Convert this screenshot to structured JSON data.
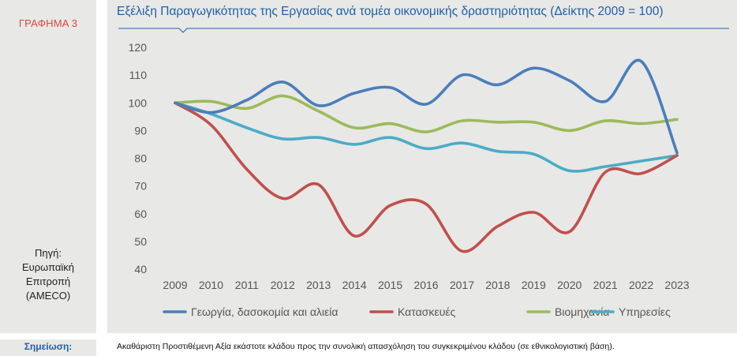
{
  "left": {
    "figure_label": "ΓΡΑΦΗΜΑ 3",
    "source_lines": [
      "Πηγή:",
      "Ευρωπαϊκή",
      "Επιτροπή",
      "(AMECO)"
    ]
  },
  "note": {
    "label": "Σημείωση:",
    "text": "Ακαθάριστη Προστιθέμενη Αξία εκάστοτε κλάδου προς την συνολική απασχόληση του συγκεκριμένου κλάδου (σε εθνικολογιστική βάση)."
  },
  "colors": {
    "title": "#1f5fa8",
    "figure_label": "#e0443c",
    "series": [
      "#4a7ebb",
      "#c0504d",
      "#9bbb59",
      "#4bacc6"
    ]
  },
  "chart_data": {
    "type": "line",
    "title": "Εξέλιξη Παραγωγικότητας της Εργασίας ανά τομέα οικονομικής δραστηριότητας (Δείκτης 2009 = 100)",
    "xlabel": "",
    "ylabel": "",
    "x": [
      "2009",
      "2010",
      "2011",
      "2012",
      "2013",
      "2014",
      "2015",
      "2016",
      "2017",
      "2018",
      "2019",
      "2020",
      "2021",
      "2022",
      "2023"
    ],
    "ylim": [
      40,
      120
    ],
    "yticks": [
      "40",
      "50",
      "60",
      "70",
      "80",
      "90",
      "100",
      "110",
      "120"
    ],
    "grid": false,
    "legend_position": "bottom",
    "series": [
      {
        "name": "Γεωργία, δασοκομία και αλιεία",
        "values": [
          100,
          96.5,
          101,
          107.5,
          99,
          103.5,
          105.5,
          99.5,
          110,
          106.5,
          112.5,
          108,
          100.5,
          115,
          82
        ]
      },
      {
        "name": "Κατασκευές",
        "values": [
          100,
          92,
          76,
          65.5,
          70.5,
          52,
          63,
          63.5,
          46.5,
          55.5,
          60.5,
          53.5,
          75,
          74.5,
          81
        ]
      },
      {
        "name": "Βιομηχανία",
        "values": [
          100,
          100.5,
          98,
          102.5,
          97,
          91,
          92.5,
          89.5,
          93.5,
          93,
          93,
          90,
          93.5,
          92.5,
          94
        ]
      },
      {
        "name": "Υπηρεσίες",
        "values": [
          100,
          96,
          91,
          87,
          87.5,
          85,
          87.5,
          83.5,
          85.5,
          82.5,
          81.5,
          75.5,
          77,
          79,
          81
        ]
      }
    ]
  }
}
